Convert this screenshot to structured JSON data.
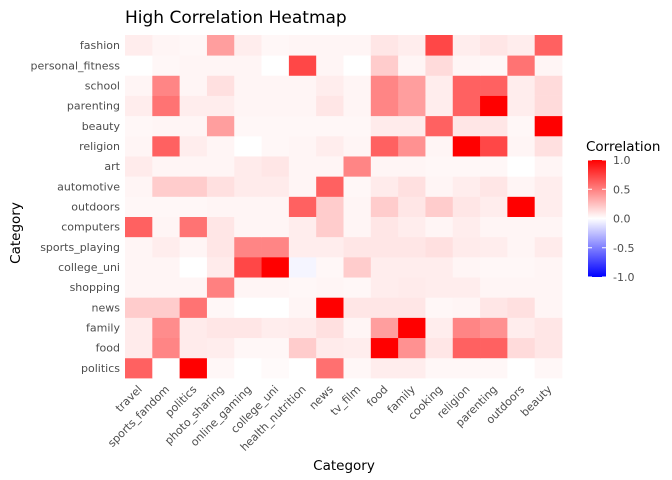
{
  "chart_data": {
    "type": "heatmap",
    "title": "High Correlation Heatmap",
    "xlabel": "Category",
    "ylabel": "Category",
    "x_categories": [
      "travel",
      "sports_fandom",
      "politics",
      "photo_sharing",
      "online_gaming",
      "college_uni",
      "health_nutrition",
      "news",
      "tv_film",
      "food",
      "family",
      "cooking",
      "religion",
      "parenting",
      "outdoors",
      "beauty"
    ],
    "y_categories": [
      "politics",
      "food",
      "family",
      "news",
      "shopping",
      "college_uni",
      "sports_playing",
      "computers",
      "outdoors",
      "automotive",
      "art",
      "religion",
      "beauty",
      "parenting",
      "school",
      "personal_fitness",
      "fashion"
    ],
    "values": [
      [
        0.62,
        0.0,
        1.0,
        0.03,
        0.0,
        0.02,
        0.0,
        0.56,
        0.03,
        0.07,
        0.07,
        0.03,
        0.03,
        0.03,
        0.0,
        0.03
      ],
      [
        0.08,
        0.48,
        0.08,
        0.07,
        0.03,
        0.03,
        0.2,
        0.08,
        0.07,
        1.0,
        0.43,
        0.1,
        0.62,
        0.62,
        0.14,
        0.1
      ],
      [
        0.08,
        0.45,
        0.08,
        0.1,
        0.1,
        0.07,
        0.08,
        0.12,
        0.04,
        0.38,
        1.0,
        0.07,
        0.48,
        0.43,
        0.07,
        0.1
      ],
      [
        0.2,
        0.2,
        0.55,
        0.03,
        0.0,
        0.0,
        0.04,
        1.0,
        0.1,
        0.1,
        0.1,
        0.03,
        0.04,
        0.1,
        0.12,
        0.04
      ],
      [
        0.04,
        0.04,
        0.04,
        0.5,
        0.04,
        0.04,
        0.03,
        0.04,
        0.03,
        0.07,
        0.08,
        0.07,
        0.07,
        0.04,
        0.04,
        0.04
      ],
      [
        0.04,
        0.04,
        0.0,
        0.08,
        0.72,
        1.0,
        -0.04,
        0.03,
        0.2,
        0.07,
        0.07,
        0.07,
        0.04,
        0.03,
        0.03,
        0.04
      ],
      [
        0.04,
        0.07,
        0.04,
        0.1,
        0.48,
        0.48,
        0.07,
        0.07,
        0.1,
        0.1,
        0.1,
        0.12,
        0.08,
        0.07,
        0.04,
        0.08
      ],
      [
        0.62,
        0.04,
        0.55,
        0.1,
        0.04,
        0.04,
        0.07,
        0.2,
        0.04,
        0.1,
        0.07,
        0.04,
        0.07,
        0.04,
        0.04,
        0.04
      ],
      [
        0.03,
        0.03,
        0.03,
        0.04,
        0.04,
        0.04,
        0.62,
        0.2,
        0.04,
        0.2,
        0.1,
        0.2,
        0.1,
        0.07,
        1.0,
        0.07
      ],
      [
        0.04,
        0.2,
        0.2,
        0.12,
        0.08,
        0.08,
        0.04,
        0.62,
        0.03,
        0.08,
        0.12,
        0.04,
        0.07,
        0.1,
        0.04,
        0.07
      ],
      [
        0.08,
        0.04,
        0.04,
        0.04,
        0.08,
        0.1,
        0.04,
        0.04,
        0.48,
        0.04,
        0.04,
        0.03,
        0.03,
        0.03,
        0.0,
        0.04
      ],
      [
        0.04,
        0.62,
        0.07,
        0.04,
        0.0,
        0.03,
        0.04,
        0.07,
        0.04,
        0.62,
        0.43,
        0.04,
        1.0,
        0.72,
        0.04,
        0.12
      ],
      [
        0.03,
        0.04,
        0.04,
        0.38,
        0.03,
        0.03,
        0.03,
        0.03,
        0.03,
        0.08,
        0.08,
        0.62,
        0.1,
        0.1,
        0.03,
        1.0
      ],
      [
        0.07,
        0.55,
        0.07,
        0.07,
        0.04,
        0.04,
        0.04,
        0.1,
        0.04,
        0.48,
        0.38,
        0.07,
        0.62,
        1.0,
        0.07,
        0.14
      ],
      [
        0.04,
        0.48,
        0.04,
        0.12,
        0.04,
        0.04,
        0.04,
        0.07,
        0.04,
        0.48,
        0.38,
        0.07,
        0.62,
        0.62,
        0.07,
        0.14
      ],
      [
        0.0,
        0.03,
        0.04,
        0.04,
        0.04,
        0.0,
        0.72,
        0.04,
        0.0,
        0.2,
        0.04,
        0.14,
        0.04,
        0.03,
        0.55,
        0.04
      ],
      [
        0.07,
        0.04,
        0.03,
        0.38,
        0.07,
        0.03,
        0.04,
        0.04,
        0.04,
        0.1,
        0.07,
        0.72,
        0.07,
        0.1,
        0.07,
        0.62
      ]
    ],
    "colorscale": {
      "low": "#0000ff",
      "mid": "#ffffff",
      "high": "#ff0000"
    },
    "range": [
      -1.0,
      1.0
    ],
    "legend": {
      "title": "Correlation",
      "ticks": [
        1.0,
        0.5,
        0.0,
        -0.5,
        -1.0
      ],
      "tick_labels": [
        "1.0",
        "0.5",
        "0.0",
        "-0.5",
        "-1.0"
      ],
      "position": "right"
    },
    "grid": true
  }
}
